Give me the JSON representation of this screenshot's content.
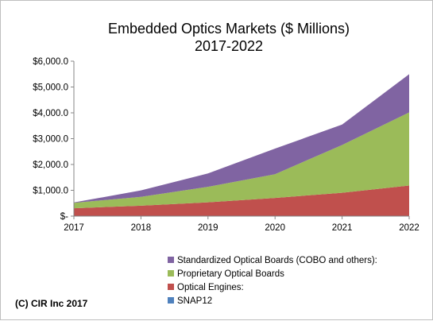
{
  "chart_data": {
    "type": "area",
    "title_lines": [
      "Embedded Optics Markets ($ Millions)",
      "2017-2022"
    ],
    "x": [
      "2017",
      "2018",
      "2019",
      "2020",
      "2021",
      "2022"
    ],
    "ylim": [
      0,
      6000
    ],
    "y_ticks": [
      {
        "value": 0,
        "label": "$-"
      },
      {
        "value": 1000,
        "label": "$1,000.0"
      },
      {
        "value": 2000,
        "label": "$2,000.0"
      },
      {
        "value": 3000,
        "label": "$3,000.0"
      },
      {
        "value": 4000,
        "label": "$4,000.0"
      },
      {
        "value": 5000,
        "label": "$5,000.0"
      },
      {
        "value": 6000,
        "label": "$6,000.0"
      }
    ],
    "grid": false,
    "stacked": true,
    "legend_position": "bottom-right",
    "series": [
      {
        "name": "SNAP12",
        "color": "#4f81bd",
        "values": [
          5,
          5,
          5,
          5,
          5,
          5
        ]
      },
      {
        "name": "Optical Engines:",
        "color": "#c0504d",
        "values": [
          300,
          400,
          530,
          700,
          900,
          1180
        ]
      },
      {
        "name": "Proprietary Optical Boards",
        "color": "#9bbb59",
        "values": [
          210,
          340,
          600,
          920,
          1850,
          2830
        ]
      },
      {
        "name": "Standardized Optical Boards (COBO and others):",
        "color": "#8064a2",
        "values": [
          15,
          250,
          520,
          990,
          790,
          1480
        ]
      }
    ],
    "legend_order": [
      3,
      2,
      1,
      0
    ]
  },
  "footer": {
    "copyright": "(C) CIR Inc 2017"
  }
}
